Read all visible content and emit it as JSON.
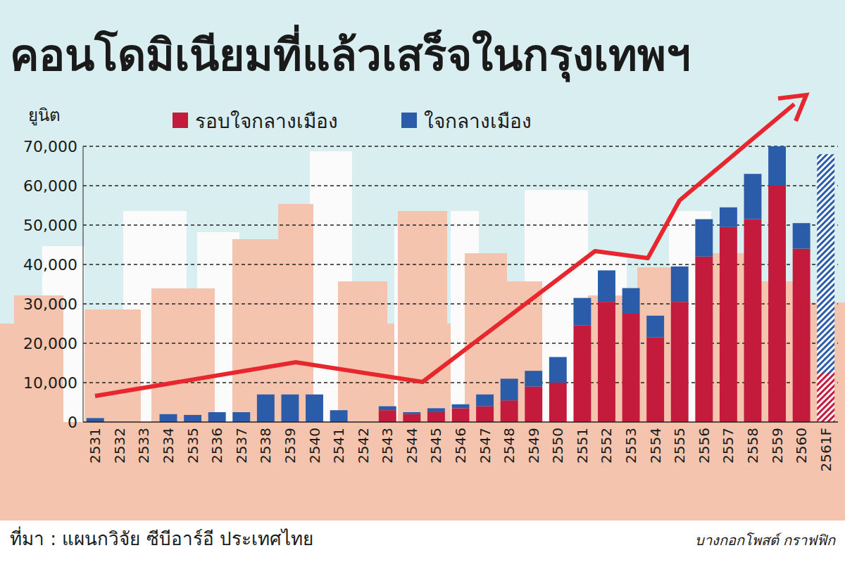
{
  "chart_data": {
    "type": "bar",
    "title": "คอนโดมิเนียมที่แล้วเสร็จในกรุงเทพฯ",
    "y_label": "ยูนิต",
    "source": "ที่มา : แผนกวิจัย ซีบีอาร์อี ประเทศไทย",
    "credit": "บางกอกโพสต์ กราฟฟิก",
    "stacked": true,
    "grid": true,
    "legend": "top",
    "categories": [
      "2531",
      "2532",
      "2533",
      "2534",
      "2535",
      "2536",
      "2537",
      "2538",
      "2539",
      "2540",
      "2541",
      "2542",
      "2543",
      "2544",
      "2545",
      "2546",
      "2547",
      "2548",
      "2549",
      "2550",
      "2551",
      "2552",
      "2553",
      "2554",
      "2555",
      "2556",
      "2557",
      "2558",
      "2559",
      "2560",
      "2561F"
    ],
    "series": [
      {
        "name": "รอบใจกลางเมือง",
        "color": "#c41a3b",
        "values": [
          0,
          0,
          0,
          0,
          0,
          0,
          0,
          0,
          0,
          0,
          0,
          0,
          3000,
          2000,
          2500,
          3500,
          4000,
          5500,
          9000,
          10000,
          24500,
          30500,
          27500,
          21500,
          30500,
          42000,
          49500,
          51500,
          60000,
          44000,
          12500
        ]
      },
      {
        "name": "ใจกลางเมือง",
        "color": "#2a5caa",
        "values": [
          1000,
          0,
          0,
          2000,
          1800,
          2500,
          2500,
          7000,
          7000,
          7000,
          3000,
          0,
          1000,
          500,
          1000,
          1000,
          3000,
          5500,
          4000,
          6500,
          7000,
          8000,
          6500,
          5500,
          9000,
          9500,
          5000,
          11500,
          10000,
          6500,
          55500
        ]
      }
    ],
    "ylim": [
      0,
      70000
    ],
    "yticks": [
      0,
      {
        "value": 10000,
        "label": "10,000"
      },
      {
        "value": 20000,
        "label": "20,000"
      },
      {
        "value": 30000,
        "label": "30,000"
      },
      {
        "value": 40000,
        "label": "40,000"
      },
      {
        "value": 50000,
        "label": "50,000"
      },
      {
        "value": 60000,
        "label": "60,000"
      },
      {
        "value": 70000,
        "label": "70,000"
      }
    ]
  }
}
